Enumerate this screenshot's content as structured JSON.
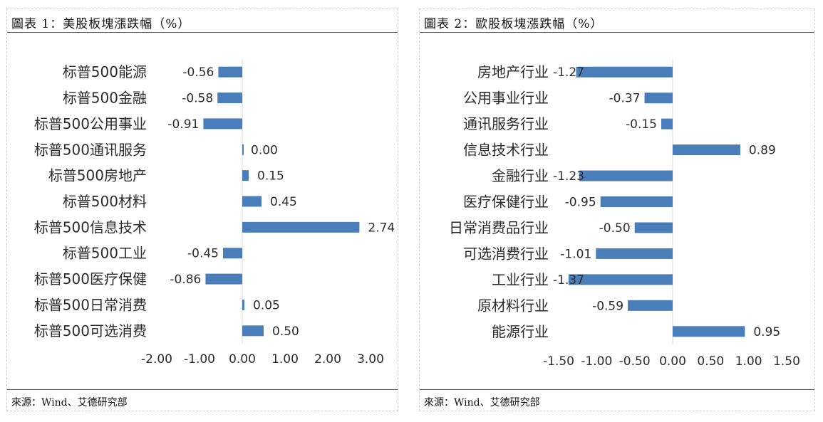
{
  "chart_data": [
    {
      "type": "bar",
      "orientation": "horizontal",
      "title": "圖表 1：美股板塊漲跌幅（%）",
      "source": "來源：Wind、艾德研究部",
      "categories": [
        "标普500能源",
        "标普500金融",
        "标普500公用事业",
        "标普500通讯服务",
        "标普500房地产",
        "标普500材料",
        "标普500信息技术",
        "标普500工业",
        "标普500医疗保健",
        "标普500日常消费",
        "标普500可选消费"
      ],
      "values": [
        -0.56,
        -0.58,
        -0.91,
        0.0,
        0.15,
        0.45,
        2.74,
        -0.45,
        -0.86,
        0.05,
        0.5
      ],
      "value_labels": [
        "-0.56",
        "-0.58",
        "-0.91",
        "0.00",
        "0.15",
        "0.45",
        "2.74",
        "-0.45",
        "-0.86",
        "0.05",
        "0.50"
      ],
      "xlim": [
        -2,
        3
      ],
      "x_ticks": [
        -2,
        -1,
        0,
        1,
        2,
        3
      ],
      "x_tick_labels": [
        "-2.00",
        "-1.00",
        "0.00",
        "1.00",
        "2.00",
        "3.00"
      ],
      "bar_color": "#4a7ebb",
      "grid": false
    },
    {
      "type": "bar",
      "orientation": "horizontal",
      "title": "圖表 2：歐股板塊漲跌幅（%）",
      "source": "來源：Wind、艾德研究部",
      "categories": [
        "房地产行业",
        "公用事业行业",
        "通讯服务行业",
        "信息技术行业",
        "金融行业",
        "医疗保健行业",
        "日常消费品行业",
        "可选消费行业",
        "工业行业",
        "原材料行业",
        "能源行业"
      ],
      "values": [
        -1.27,
        -0.37,
        -0.15,
        0.89,
        -1.23,
        -0.95,
        -0.5,
        -1.01,
        -1.37,
        -0.59,
        0.95
      ],
      "value_labels": [
        "-1.27",
        "-0.37",
        "-0.15",
        "0.89",
        "-1.23",
        "-0.95",
        "-0.50",
        "-1.01",
        "-1.37",
        "-0.59",
        "0.95"
      ],
      "xlim": [
        -1.5,
        1.5
      ],
      "x_ticks": [
        -1.5,
        -1.0,
        -0.5,
        0,
        0.5,
        1.0,
        1.5
      ],
      "x_tick_labels": [
        "-1.50",
        "-1.00",
        "-0.50",
        "0.00",
        "0.50",
        "1.00",
        "1.50"
      ],
      "bar_color": "#4a7ebb",
      "grid": false
    }
  ]
}
